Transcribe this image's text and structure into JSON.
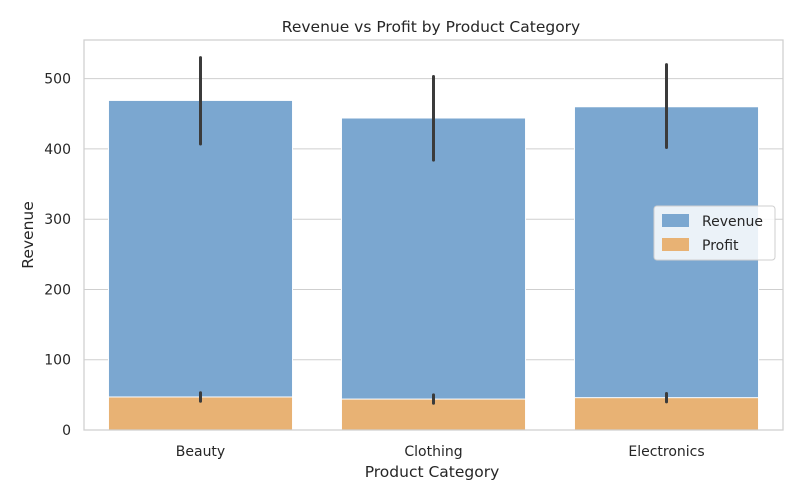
{
  "chart_data": {
    "type": "bar",
    "title": "Revenue vs Profit by Product Category",
    "xlabel": "Product Category",
    "ylabel": "Revenue",
    "categories": [
      "Beauty",
      "Clothing",
      "Electronics"
    ],
    "ylim": [
      0,
      555
    ],
    "yticks": [
      0,
      100,
      200,
      300,
      400,
      500
    ],
    "grid": true,
    "legend_position": "center-right",
    "series": [
      {
        "name": "Revenue",
        "color": "#7ba7d0",
        "values": [
          469,
          444,
          460
        ],
        "error_low": [
          407,
          384,
          402
        ],
        "error_high": [
          530,
          503,
          520
        ]
      },
      {
        "name": "Profit",
        "color": "#e8b274",
        "values": [
          47,
          44,
          46
        ],
        "error_low": [
          41,
          38,
          40
        ],
        "error_high": [
          53,
          50,
          52
        ]
      }
    ],
    "errorbar_color": "#3b3b3b",
    "grid_color": "#cfcfcf"
  }
}
